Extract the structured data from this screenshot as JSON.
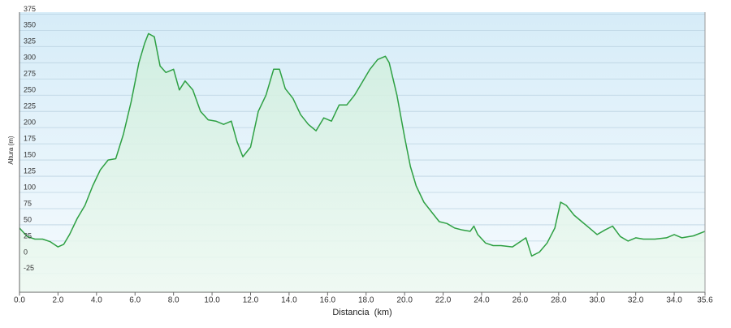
{
  "chart_data": {
    "type": "area",
    "x_label": "Distancia  (km)",
    "y_label": "Altura (m)",
    "x": [
      0,
      0.4,
      0.8,
      1.2,
      1.6,
      2.0,
      2.3,
      2.6,
      3.0,
      3.4,
      3.8,
      4.2,
      4.6,
      5.0,
      5.4,
      5.8,
      6.2,
      6.5,
      6.7,
      7.0,
      7.3,
      7.6,
      8.0,
      8.3,
      8.6,
      9.0,
      9.4,
      9.8,
      10.2,
      10.6,
      11.0,
      11.3,
      11.6,
      12.0,
      12.4,
      12.8,
      13.2,
      13.5,
      13.8,
      14.2,
      14.6,
      15.0,
      15.4,
      15.8,
      16.2,
      16.6,
      17.0,
      17.4,
      17.8,
      18.2,
      18.6,
      19.0,
      19.2,
      19.6,
      20.0,
      20.3,
      20.6,
      21.0,
      21.4,
      21.8,
      22.2,
      22.6,
      23.0,
      23.4,
      23.6,
      23.8,
      24.2,
      24.6,
      25.0,
      25.6,
      26.0,
      26.3,
      26.6,
      27.0,
      27.4,
      27.8,
      28.1,
      28.4,
      28.8,
      29.2,
      29.6,
      30.0,
      30.4,
      30.8,
      31.2,
      31.6,
      32.0,
      32.4,
      33.0,
      33.6,
      34.0,
      34.4,
      35.0,
      35.6
    ],
    "series": [
      {
        "name": "Altura",
        "color": "#2ea043",
        "values": [
          45,
          32,
          28,
          28,
          24,
          16,
          20,
          35,
          60,
          80,
          110,
          135,
          150,
          152,
          190,
          240,
          300,
          330,
          345,
          340,
          295,
          285,
          290,
          258,
          272,
          258,
          225,
          212,
          210,
          205,
          210,
          178,
          155,
          170,
          225,
          250,
          290,
          290,
          260,
          245,
          220,
          205,
          195,
          215,
          210,
          235,
          235,
          250,
          270,
          290,
          305,
          310,
          300,
          250,
          185,
          140,
          110,
          85,
          70,
          55,
          52,
          45,
          42,
          40,
          48,
          35,
          22,
          18,
          18,
          16,
          24,
          30,
          2,
          8,
          22,
          45,
          85,
          80,
          65,
          55,
          45,
          35,
          42,
          48,
          32,
          25,
          30,
          28,
          28,
          30,
          35,
          30,
          33,
          40
        ]
      }
    ],
    "xlim": [
      0,
      35.6
    ],
    "ylim": [
      -54,
      378
    ],
    "xticks": [
      {
        "value": 0,
        "label": "0.0"
      },
      {
        "value": 2,
        "label": "2.0"
      },
      {
        "value": 4,
        "label": "4.0"
      },
      {
        "value": 6,
        "label": "6.0"
      },
      {
        "value": 8,
        "label": "8.0"
      },
      {
        "value": 10,
        "label": "10.0"
      },
      {
        "value": 12,
        "label": "12.0"
      },
      {
        "value": 14,
        "label": "14.0"
      },
      {
        "value": 16,
        "label": "16.0"
      },
      {
        "value": 18,
        "label": "18.0"
      },
      {
        "value": 20,
        "label": "20.0"
      },
      {
        "value": 22,
        "label": "22.0"
      },
      {
        "value": 24,
        "label": "24.0"
      },
      {
        "value": 26,
        "label": "26.0"
      },
      {
        "value": 28,
        "label": "28.0"
      },
      {
        "value": 30,
        "label": "30.0"
      },
      {
        "value": 32,
        "label": "32.0"
      },
      {
        "value": 34,
        "label": "34.0"
      },
      {
        "value": 35.6,
        "label": "35.6"
      }
    ],
    "yticks": [
      -25,
      0,
      25,
      50,
      75,
      100,
      125,
      150,
      175,
      200,
      225,
      250,
      275,
      300,
      325,
      350,
      375
    ],
    "grid": true
  }
}
